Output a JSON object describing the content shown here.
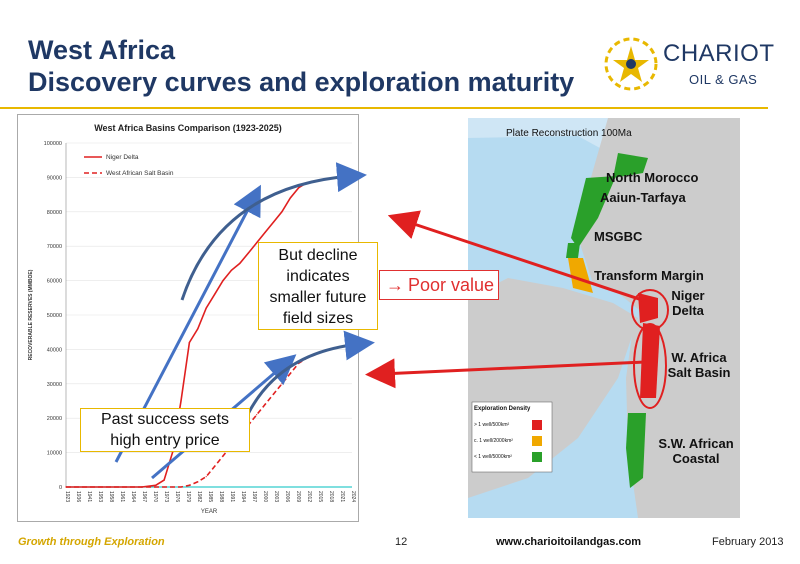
{
  "slide": {
    "title_line1": "West Africa",
    "title_line2": "Discovery curves and exploration maturity",
    "logo_brand": "CHARIOT",
    "logo_sub": "OIL & GAS"
  },
  "callouts": {
    "decline": [
      "But decline",
      "indicates",
      "smaller future",
      "field sizes"
    ],
    "success": [
      "Past success sets",
      "high entry price"
    ],
    "poor_value": "Poor value",
    "poor_arrow": "→"
  },
  "chart_data": {
    "type": "line",
    "title": "West Africa Basins Comparison (1923-2025)",
    "xlabel": "YEAR",
    "ylabel": "RECOVERABLE RESERVES (MMBOE)",
    "ylim": [
      0,
      100000
    ],
    "yticks": [
      "0",
      "10000",
      "20000",
      "30000",
      "40000",
      "50000",
      "60000",
      "70000",
      "80000",
      "90000",
      "100000"
    ],
    "xticks": [
      "1923",
      "1936",
      "1941",
      "1953",
      "1958",
      "1961",
      "1964",
      "1967",
      "1970",
      "1973",
      "1976",
      "1979",
      "1982",
      "1985",
      "1988",
      "1991",
      "1994",
      "1997",
      "2000",
      "2003",
      "2006",
      "2009",
      "2012",
      "2015",
      "2018",
      "2021",
      "2024"
    ],
    "x": [
      1923,
      1950,
      1955,
      1958,
      1961,
      1964,
      1967,
      1970,
      1973,
      1976,
      1979,
      1982,
      1985,
      1988,
      1991,
      1994,
      1997,
      2000,
      2003,
      2006,
      2009,
      2012
    ],
    "series": [
      {
        "name": "Niger Delta",
        "color": "#e02020",
        "dash": false,
        "values": [
          0,
          0,
          500,
          2000,
          10000,
          25000,
          42000,
          46000,
          52000,
          56000,
          60000,
          63000,
          65000,
          68000,
          71000,
          74000,
          77000,
          80000,
          84000,
          87000,
          88500,
          89000
        ]
      },
      {
        "name": "West African Salt Basin",
        "color": "#e02020",
        "dash": true,
        "values": [
          0,
          0,
          0,
          0,
          0,
          0,
          500,
          1500,
          3000,
          6000,
          9000,
          12000,
          15000,
          18000,
          21000,
          24000,
          27000,
          30000,
          33000,
          36000,
          37500,
          38500
        ]
      }
    ],
    "legend_position": "top-left"
  },
  "map": {
    "title": "Plate Reconstruction 100Ma",
    "labels": [
      "North Morocco",
      "Aaiun-Tarfaya",
      "MSGBC",
      "Transform Margin",
      "Niger Delta",
      "W. Africa Salt Basin",
      "S.W. African Coastal"
    ],
    "legend_title": "Exploration Density",
    "legend_items": [
      {
        "label": "> 1 well/500km²",
        "color": "#e02020"
      },
      {
        "label": "c. 1 well/2000km²",
        "color": "#f0a800"
      },
      {
        "label": "< 1 well/5000km²",
        "color": "#2aa02a"
      }
    ]
  },
  "footer": {
    "tagline": "Growth through Exploration",
    "page": "12",
    "url": "www.charioitoilandgas.com",
    "date": "February 2013"
  }
}
